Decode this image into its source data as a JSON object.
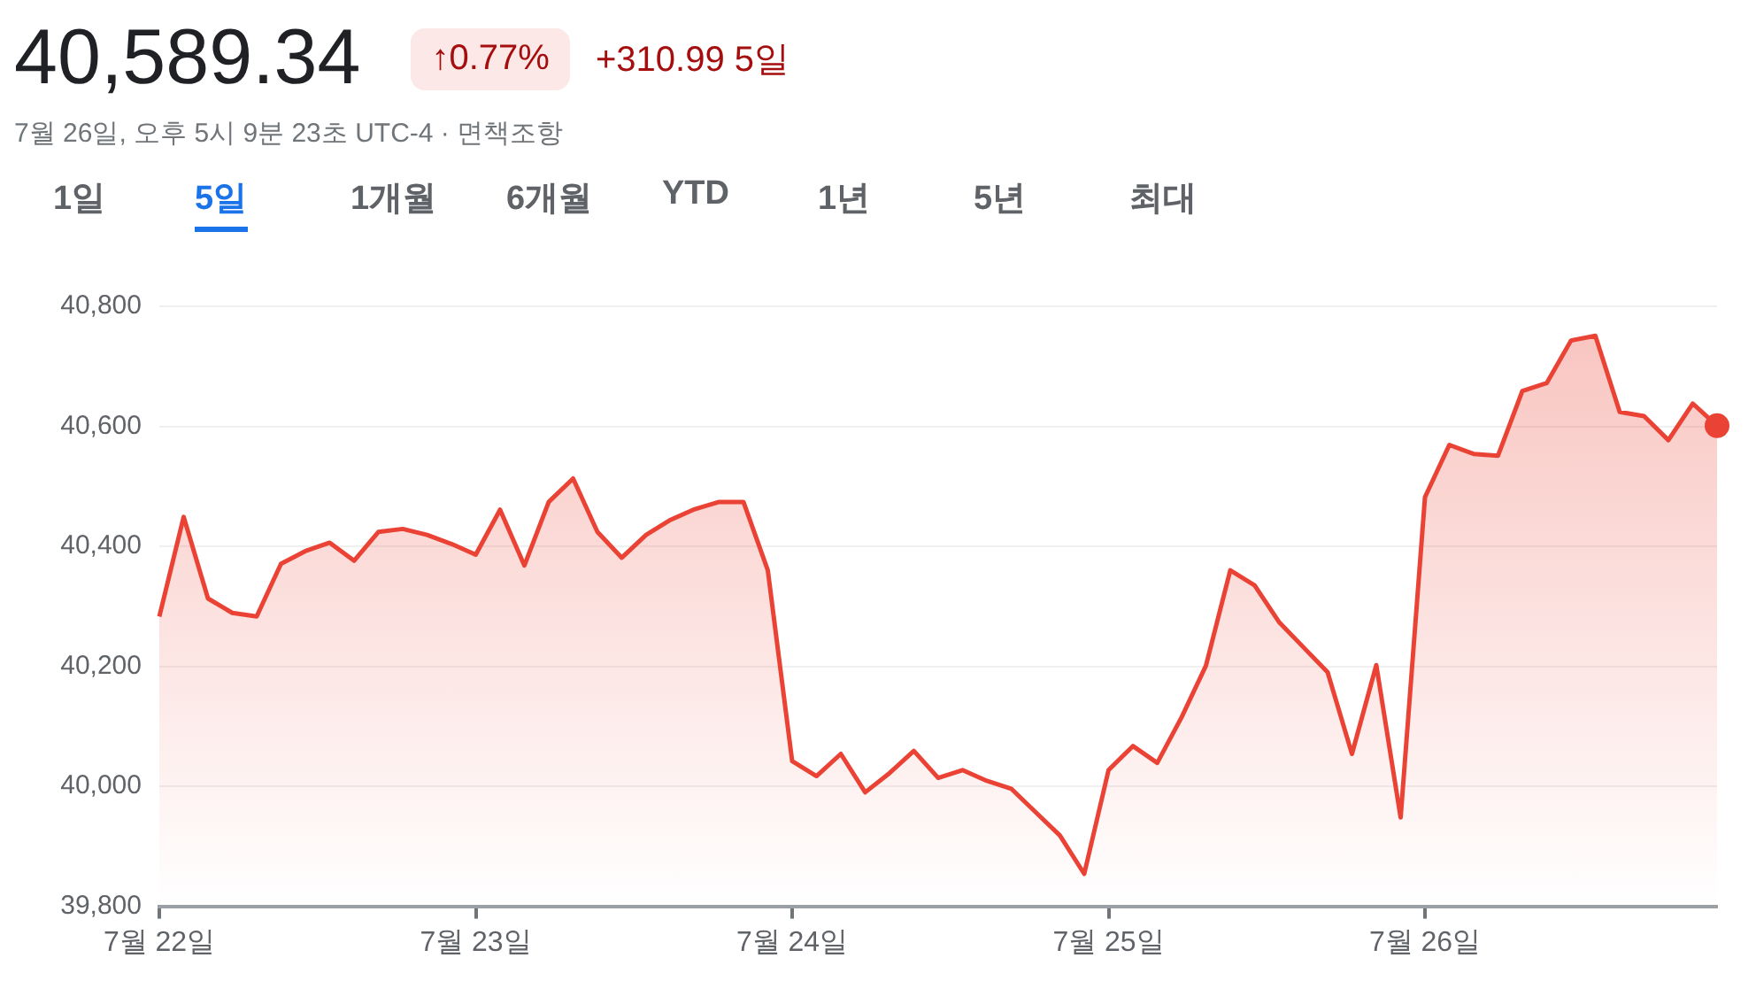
{
  "chart_data": {
    "type": "area",
    "title": "40,589.34",
    "annotations": [
      "↑0.77%",
      "+310.99 5일",
      "7월 26일, 오후 5시 9분 23초 UTC-4 · 면책조항",
      "1일",
      "5일",
      "1개월",
      "6개월",
      "YTD",
      "1년",
      "5년",
      "최대"
    ],
    "categories": [
      "7월 22일",
      null,
      null,
      null,
      null,
      null,
      null,
      null,
      null,
      null,
      null,
      null,
      null,
      "7월 23일",
      null,
      null,
      null,
      null,
      null,
      null,
      null,
      null,
      null,
      null,
      null,
      null,
      "7월 24일",
      null,
      null,
      null,
      null,
      null,
      null,
      null,
      null,
      null,
      null,
      null,
      null,
      "7월 25일",
      null,
      null,
      null,
      null,
      null,
      null,
      null,
      null,
      null,
      null,
      null,
      null,
      "7월 26일",
      null,
      null,
      null,
      null,
      null,
      null,
      null,
      null,
      null,
      null,
      null,
      null
    ],
    "series": [
      {
        "color": "#ea4335",
        "values": [
          40283,
          40449,
          40313,
          40289,
          40283,
          40371,
          40392,
          40406,
          40376,
          40424,
          40429,
          40419,
          40404,
          40386,
          40461,
          40368,
          40474,
          40513,
          40424,
          40381,
          40419,
          40444,
          40462,
          40474,
          40474,
          40360,
          40042,
          40017,
          40054,
          39990,
          40022,
          40059,
          40014,
          40027,
          40009,
          39996,
          39957,
          39918,
          39854,
          40027,
          40067,
          40039,
          40115,
          40201,
          40360,
          40335,
          40274,
          40232,
          40190,
          40054,
          40202,
          39948,
          40482,
          40569,
          40554,
          40551,
          40659,
          40672,
          40743,
          40751,
          40624,
          40617,
          40577,
          40638,
          40601
        ]
      }
    ],
    "ylim": [
      39800,
      40800
    ],
    "yticks": [
      {
        "value": 39800,
        "label": "39,800"
      },
      {
        "value": 40000,
        "label": "40,000"
      },
      {
        "value": 40200,
        "label": "40,200"
      },
      {
        "value": 40400,
        "label": "40,400"
      },
      {
        "value": 40600,
        "label": "40,600"
      },
      {
        "value": 40800,
        "label": "40,800"
      }
    ],
    "grid": "y",
    "legend": false,
    "marker": "none",
    "line_style": "solid"
  }
}
